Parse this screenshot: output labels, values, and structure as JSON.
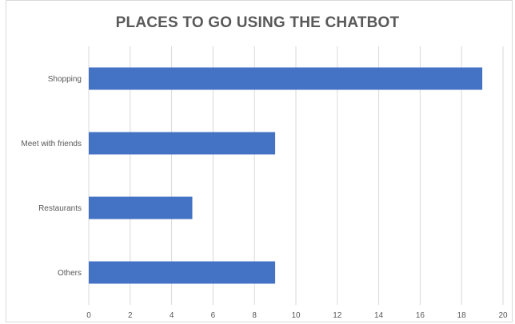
{
  "chart_data": {
    "type": "bar",
    "orientation": "horizontal",
    "title": "PLACES TO GO USING THE CHATBOT",
    "categories": [
      "Shopping",
      "Meet with friends",
      "Restaurants",
      "Others"
    ],
    "values": [
      19,
      9,
      5,
      9
    ],
    "xlim": [
      0,
      20
    ],
    "xticks": [
      0,
      2,
      4,
      6,
      8,
      10,
      12,
      14,
      16,
      18,
      20
    ],
    "xlabel": "",
    "ylabel": "",
    "grid": "vertical",
    "legend": "none",
    "bar_color": "#4472c4",
    "grid_color": "#d9d9d9"
  }
}
